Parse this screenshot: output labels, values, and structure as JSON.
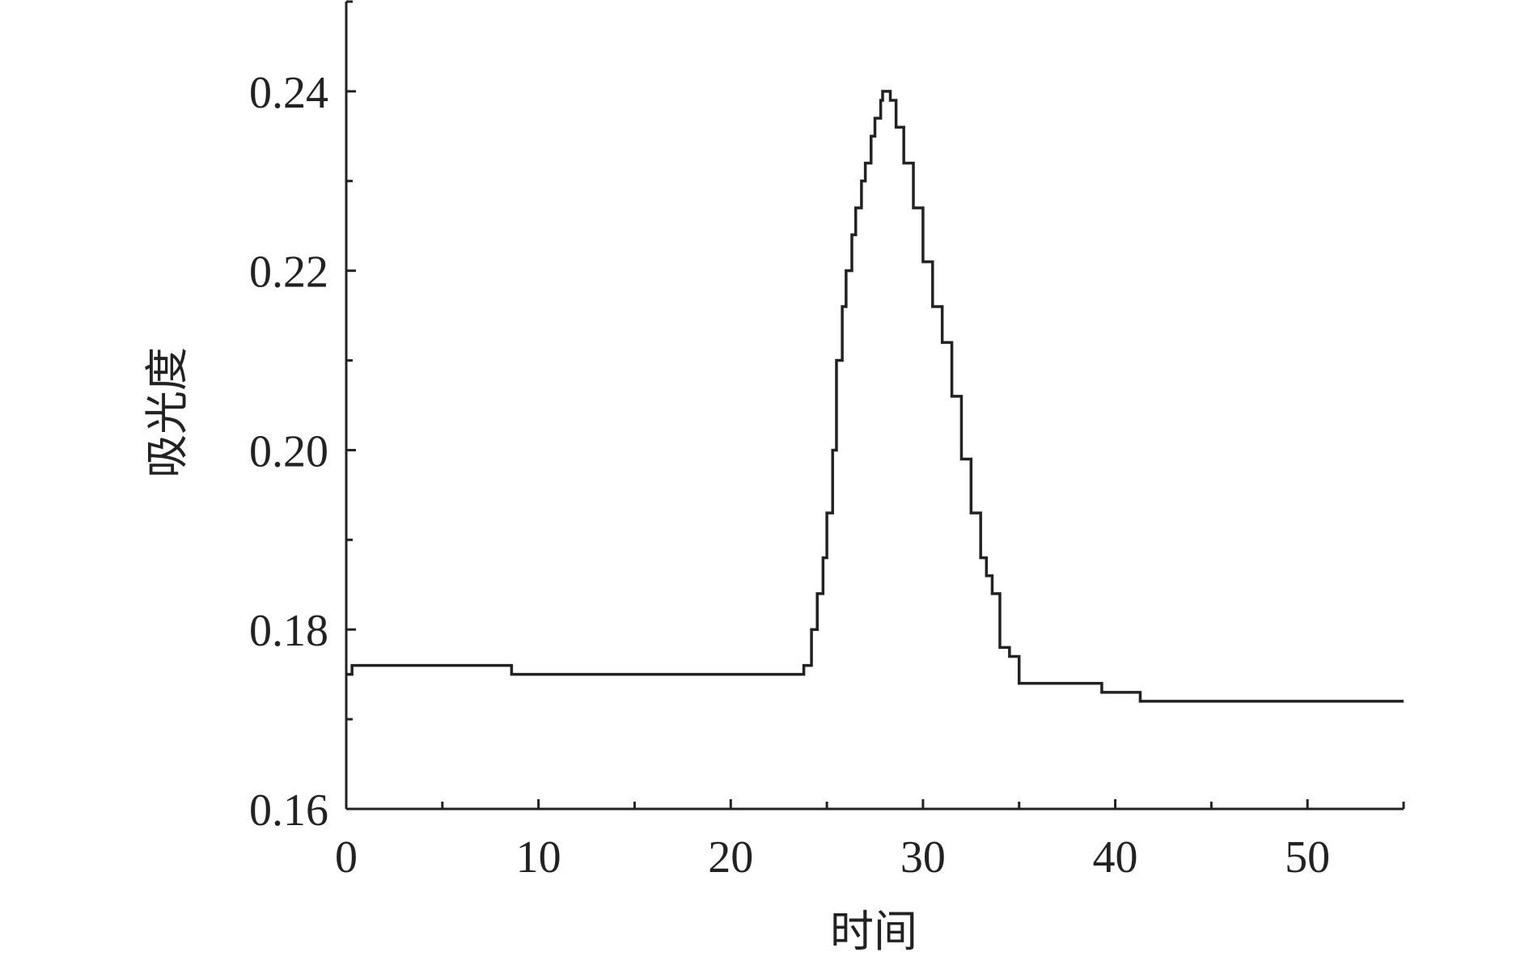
{
  "chart_data": {
    "type": "line",
    "title": "",
    "xlabel": "时间",
    "ylabel": "吸光度",
    "xlim": [
      0,
      55
    ],
    "ylim": [
      0.16,
      0.25
    ],
    "x_ticks": [
      0,
      10,
      20,
      30,
      40,
      50
    ],
    "x_tick_labels": [
      "0",
      "10",
      "20",
      "30",
      "40",
      "50"
    ],
    "x_minor_step": 5,
    "y_ticks": [
      0.16,
      0.18,
      0.2,
      0.22,
      0.24
    ],
    "y_tick_labels": [
      "0.16",
      "0.18",
      "0.20",
      "0.22",
      "0.24"
    ],
    "y_minor_step": 0.01,
    "grid": false,
    "line_color": "#222222",
    "interpolation": "step",
    "series": [
      {
        "x": [
          0,
          0.3,
          8.6,
          23.4,
          23.8,
          24.2,
          24.5,
          24.8,
          25.0,
          25.3,
          25.5,
          25.8,
          26.0,
          26.3,
          26.5,
          26.8,
          27.0,
          27.3,
          27.5,
          27.8,
          27.9,
          28.1,
          28.3,
          28.6,
          29.0,
          29.5,
          30.0,
          30.5,
          31.0,
          31.5,
          32.0,
          32.5,
          33.0,
          33.3,
          33.6,
          34.0,
          34.5,
          35.0,
          39.3,
          41.3,
          55
        ],
        "y": [
          0.175,
          0.176,
          0.175,
          0.175,
          0.176,
          0.18,
          0.184,
          0.188,
          0.193,
          0.2,
          0.21,
          0.216,
          0.22,
          0.224,
          0.227,
          0.23,
          0.232,
          0.235,
          0.237,
          0.239,
          0.24,
          0.24,
          0.239,
          0.236,
          0.232,
          0.227,
          0.221,
          0.216,
          0.212,
          0.206,
          0.199,
          0.193,
          0.188,
          0.186,
          0.184,
          0.178,
          0.177,
          0.174,
          0.173,
          0.172,
          0.172
        ]
      }
    ]
  }
}
